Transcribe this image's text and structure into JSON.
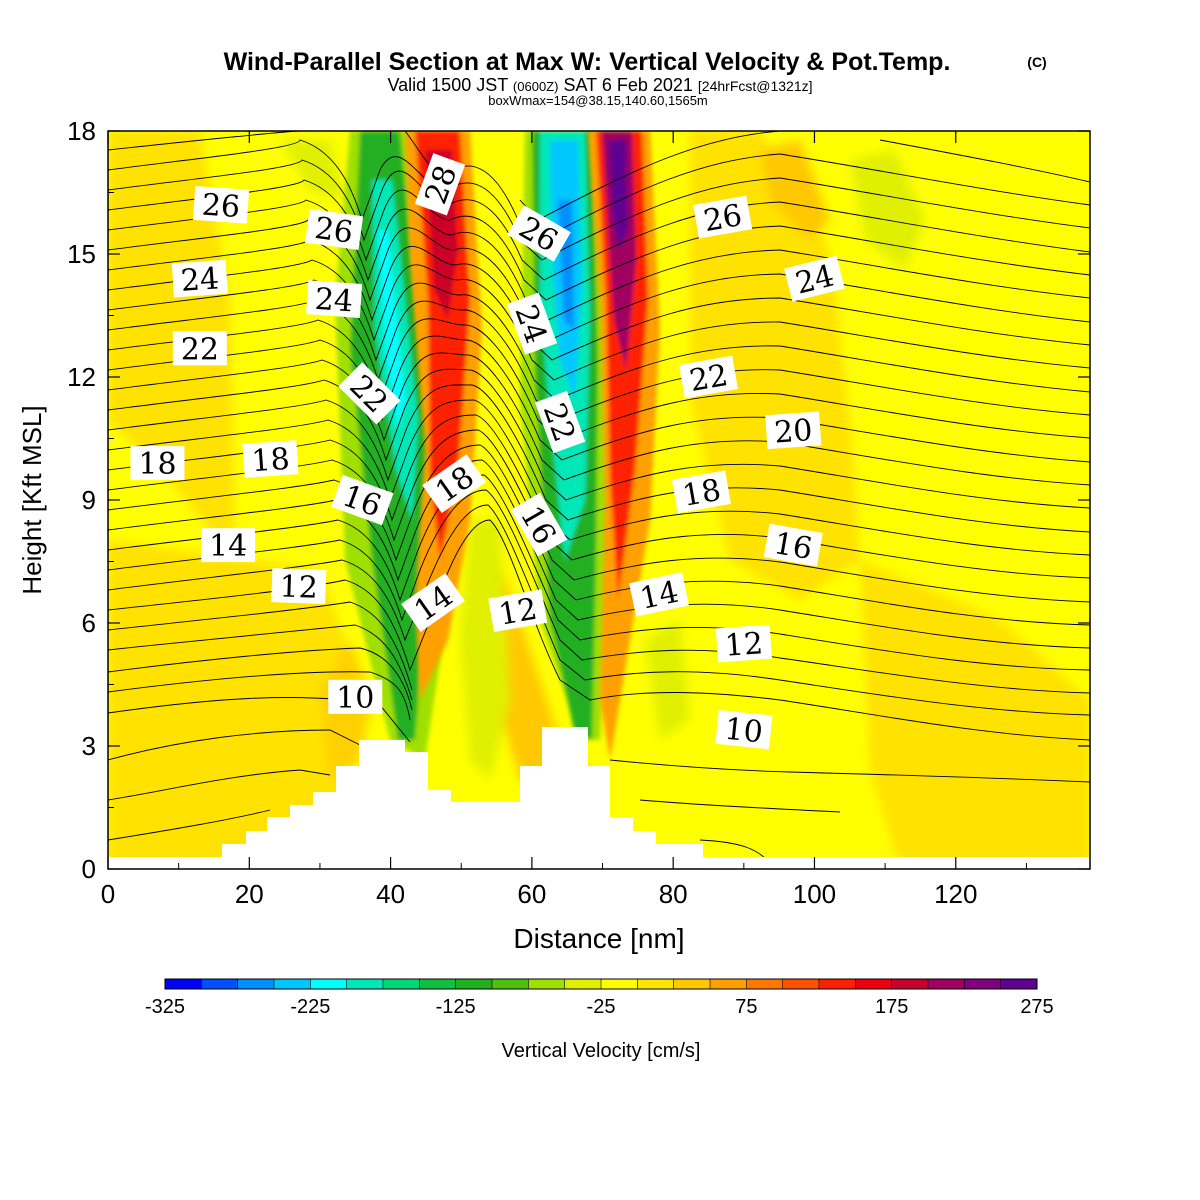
{
  "title": "Wind-Parallel Section at Max W: Vertical Velocity & Pot.Temp.",
  "title_mark": "(C)",
  "subtitle_pre": "Valid 1500 JST",
  "subtitle_small": "(0600Z)",
  "subtitle_mid": "SAT 6 Feb 2021",
  "subtitle_tail": "[24hrFcst@1321z]",
  "subtitle2": "boxWmax=154@38.15,140.60,1565m",
  "chart_data": {
    "type": "heatmap",
    "xlabel": "Distance [nm]",
    "ylabel": "Height [Kft MSL]",
    "xlim": [
      0,
      139
    ],
    "ylim": [
      0,
      18
    ],
    "x_ticks": [
      "0",
      "20",
      "40",
      "60",
      "80",
      "100",
      "120"
    ],
    "y_ticks": [
      "0",
      "3",
      "6",
      "9",
      "12",
      "15",
      "18"
    ],
    "grid": false,
    "colorbar": {
      "label": "Vertical Velocity [cm/s]",
      "tick_labels": [
        "-325",
        "-225",
        "-125",
        "-25",
        "75",
        "175",
        "275"
      ],
      "min": -325,
      "max": 275,
      "colors": [
        "#0000ff",
        "#0050ff",
        "#0090ff",
        "#00c8ff",
        "#00ffff",
        "#00e8b8",
        "#00d878",
        "#10c040",
        "#20b020",
        "#50c010",
        "#a0e000",
        "#e0f000",
        "#ffff00",
        "#ffe400",
        "#ffc800",
        "#ffa000",
        "#ff7800",
        "#ff5000",
        "#ff2000",
        "#ee0010",
        "#c80030",
        "#a00060",
        "#800080",
        "#600090"
      ]
    },
    "theta_labels_kft": [
      {
        "text": "26",
        "x": 16,
        "y": 16.2
      },
      {
        "text": "26",
        "x": 32,
        "y": 15.6
      },
      {
        "text": "28",
        "x": 47,
        "y": 16.7
      },
      {
        "text": "26",
        "x": 61,
        "y": 15.5
      },
      {
        "text": "26",
        "x": 87,
        "y": 15.9
      },
      {
        "text": "24",
        "x": 13,
        "y": 14.4
      },
      {
        "text": "24",
        "x": 32,
        "y": 13.9
      },
      {
        "text": "24",
        "x": 60,
        "y": 13.3
      },
      {
        "text": "24",
        "x": 100,
        "y": 14.4
      },
      {
        "text": "22",
        "x": 13,
        "y": 12.7
      },
      {
        "text": "22",
        "x": 37,
        "y": 11.6
      },
      {
        "text": "22",
        "x": 64,
        "y": 10.9
      },
      {
        "text": "22",
        "x": 85,
        "y": 12.0
      },
      {
        "text": "20",
        "x": 97,
        "y": 10.7
      },
      {
        "text": "18",
        "x": 7,
        "y": 9.9
      },
      {
        "text": "18",
        "x": 23,
        "y": 10.0
      },
      {
        "text": "18",
        "x": 49,
        "y": 9.4
      },
      {
        "text": "18",
        "x": 84,
        "y": 9.2
      },
      {
        "text": "16",
        "x": 36,
        "y": 9.0
      },
      {
        "text": "16",
        "x": 61,
        "y": 8.4
      },
      {
        "text": "16",
        "x": 97,
        "y": 7.9
      },
      {
        "text": "14",
        "x": 17,
        "y": 7.9
      },
      {
        "text": "14",
        "x": 46,
        "y": 6.5
      },
      {
        "text": "14",
        "x": 78,
        "y": 6.7
      },
      {
        "text": "12",
        "x": 27,
        "y": 6.9
      },
      {
        "text": "12",
        "x": 58,
        "y": 6.3
      },
      {
        "text": "12",
        "x": 90,
        "y": 5.5
      },
      {
        "text": "10",
        "x": 35,
        "y": 4.2
      },
      {
        "text": "10",
        "x": 90,
        "y": 3.4
      }
    ]
  }
}
